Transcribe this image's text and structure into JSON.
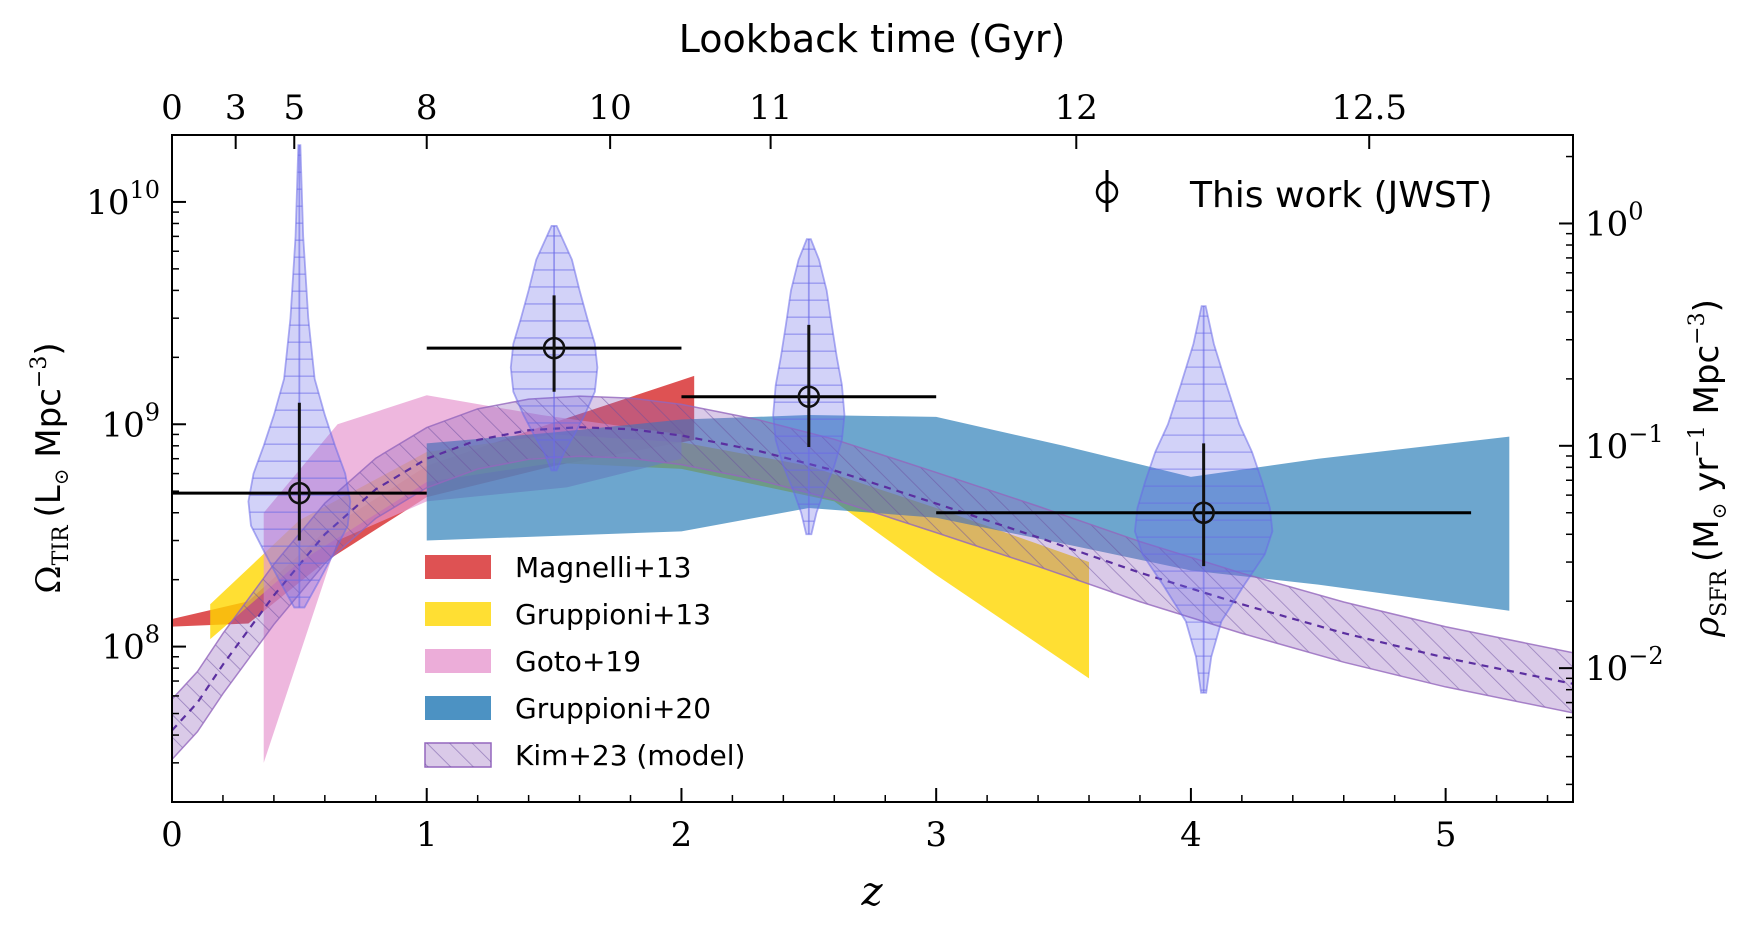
{
  "chart_data": {
    "type": "scatter",
    "xlabel": "z",
    "top_xlabel": "Lookback time (Gyr)",
    "ylabel": {
      "symbol": "Ω",
      "subscript": "TIR",
      "unit_pre": "(L",
      "sun": "⊙",
      "unit_mid": " Mpc",
      "exp": "−3",
      "unit_post": ")"
    },
    "ylabel_right": {
      "symbol": "ρ",
      "subscript": "SFR",
      "unit_pre": "(M",
      "sun": "⊙",
      "unit_mid": " yr",
      "exp1": "−1",
      "unit_mid2": " Mpc",
      "exp2": "−3",
      "unit_post": ")"
    },
    "xlim": [
      0,
      5.5
    ],
    "ylim_log": [
      20000000.0,
      20000000000.0
    ],
    "x_ticks": [
      {
        "value": 0,
        "label": "0"
      },
      {
        "value": 1,
        "label": "1"
      },
      {
        "value": 2,
        "label": "2"
      },
      {
        "value": 3,
        "label": "3"
      },
      {
        "value": 4,
        "label": "4"
      },
      {
        "value": 5,
        "label": "5"
      }
    ],
    "top_ticks": [
      {
        "z": 0,
        "label": "0"
      },
      {
        "z": 0.25,
        "label": "3"
      },
      {
        "z": 0.48,
        "label": "5"
      },
      {
        "z": 1.0,
        "label": "8"
      },
      {
        "z": 1.72,
        "label": "10"
      },
      {
        "z": 2.35,
        "label": "11"
      },
      {
        "z": 3.55,
        "label": "12"
      },
      {
        "z": 4.7,
        "label": "12.5"
      }
    ],
    "left_ticks": [
      {
        "value": 100000000.0,
        "base": "10",
        "exp": "8"
      },
      {
        "value": 1000000000.0,
        "base": "10",
        "exp": "9"
      },
      {
        "value": 10000000000.0,
        "base": "10",
        "exp": "10"
      }
    ],
    "right_ticks": [
      {
        "value": 8000000000.0,
        "base": "10",
        "exp": "0"
      },
      {
        "value": 800000000.0,
        "base": "10",
        "exp": "−1"
      },
      {
        "value": 80000000.0,
        "base": "10",
        "exp": "−2"
      }
    ],
    "legend_top": {
      "label": "This work (JWST)",
      "position": "top-right"
    },
    "legend_entries": [
      {
        "label": "Magnelli+13",
        "color": "#d62728"
      },
      {
        "label": "Gruppioni+13",
        "color": "#ffd700"
      },
      {
        "label": "Goto+19",
        "color": "#e799d0"
      },
      {
        "label": "Gruppioni+20",
        "color": "#1f77b4"
      },
      {
        "label": "Kim+23 (model)",
        "color": "#9467bd"
      }
    ],
    "series": [
      {
        "name": "Magnelli+13",
        "color": "#d62728",
        "opacity": 0.8,
        "upper": [
          [
            0,
            133000000.0
          ],
          [
            0.3,
            160000000.0
          ],
          [
            0.6,
            330000000.0
          ],
          [
            1.0,
            650000000.0
          ],
          [
            1.5,
            1020000000.0
          ],
          [
            2.05,
            1650000000.0
          ]
        ],
        "lower": [
          [
            0,
            123000000.0
          ],
          [
            0.3,
            127000000.0
          ],
          [
            0.6,
            240000000.0
          ],
          [
            1.0,
            470000000.0
          ],
          [
            1.5,
            650000000.0
          ],
          [
            2.05,
            850000000.0
          ]
        ]
      },
      {
        "name": "Gruppioni+13",
        "color": "#ffd700",
        "opacity": 0.8,
        "upper": [
          [
            0.15,
            155000000.0
          ],
          [
            0.5,
            370000000.0
          ],
          [
            1.0,
            750000000.0
          ],
          [
            1.5,
            900000000.0
          ],
          [
            2.0,
            830000000.0
          ],
          [
            2.5,
            650000000.0
          ],
          [
            3.0,
            420000000.0
          ],
          [
            3.6,
            240000000.0
          ]
        ],
        "lower": [
          [
            0.15,
            108000000.0
          ],
          [
            0.5,
            240000000.0
          ],
          [
            1.0,
            550000000.0
          ],
          [
            1.5,
            670000000.0
          ],
          [
            2.0,
            630000000.0
          ],
          [
            2.6,
            450000000.0
          ],
          [
            3.0,
            210000000.0
          ],
          [
            3.6,
            72000000.0
          ]
        ]
      },
      {
        "name": "Goto+19",
        "color": "#e799d0",
        "opacity": 0.7,
        "upper": [
          [
            0.36,
            400000000.0
          ],
          [
            0.65,
            1000000000.0
          ],
          [
            1.0,
            1350000000.0
          ],
          [
            1.45,
            1100000000.0
          ],
          [
            2.0,
            900000000.0
          ]
        ],
        "lower": [
          [
            0.36,
            30000000.0
          ],
          [
            0.65,
            300000000.0
          ],
          [
            1.0,
            450000000.0
          ],
          [
            1.55,
            520000000.0
          ],
          [
            2.0,
            700000000.0
          ]
        ]
      },
      {
        "name": "Gruppioni+20",
        "color": "#1f77b4",
        "opacity": 0.65,
        "upper": [
          [
            1.0,
            820000000.0
          ],
          [
            1.5,
            920000000.0
          ],
          [
            2.0,
            1050000000.0
          ],
          [
            2.5,
            1100000000.0
          ],
          [
            3.0,
            1080000000.0
          ],
          [
            3.5,
            800000000.0
          ],
          [
            4.0,
            580000000.0
          ],
          [
            4.5,
            700000000.0
          ],
          [
            5.25,
            880000000.0
          ]
        ],
        "lower": [
          [
            1.0,
            300000000.0
          ],
          [
            2.0,
            330000000.0
          ],
          [
            2.5,
            420000000.0
          ],
          [
            3.0,
            380000000.0
          ],
          [
            3.5,
            290000000.0
          ],
          [
            4.0,
            220000000.0
          ],
          [
            4.5,
            190000000.0
          ],
          [
            5.25,
            145000000.0
          ]
        ]
      },
      {
        "name": "Kim+23 (model)",
        "color": "#9467bd",
        "opacity": 0.35,
        "hatched": true,
        "center": [
          [
            0,
            42000000.0
          ],
          [
            0.1,
            56000000.0
          ],
          [
            0.2,
            83000000.0
          ],
          [
            0.4,
            170000000.0
          ],
          [
            0.6,
            320000000.0
          ],
          [
            0.8,
            510000000.0
          ],
          [
            1.0,
            700000000.0
          ],
          [
            1.2,
            850000000.0
          ],
          [
            1.4,
            940000000.0
          ],
          [
            1.6,
            970000000.0
          ],
          [
            1.8,
            950000000.0
          ],
          [
            2.0,
            890000000.0
          ],
          [
            2.3,
            760000000.0
          ],
          [
            2.6,
            620000000.0
          ],
          [
            3.0,
            440000000.0
          ],
          [
            3.4,
            310000000.0
          ],
          [
            3.8,
            215000000.0
          ],
          [
            4.2,
            155000000.0
          ],
          [
            4.6,
            115000000.0
          ],
          [
            5.0,
            89000000.0
          ],
          [
            5.5,
            68000000.0
          ]
        ],
        "upper_factor": 1.38,
        "lower_factor": 0.74
      }
    ],
    "points": [
      {
        "z": 0.5,
        "zlo": 0.0,
        "zhi": 1.0,
        "y": 490000000.0,
        "ylo": 300000000.0,
        "yhi": 1250000000.0,
        "violin": {
          "ymin": 150000000.0,
          "ymax": 18000000000.0,
          "profile": [
            [
              150000000.0,
              0.02
            ],
            [
              200000000.0,
              0.08
            ],
            [
              270000000.0,
              0.14
            ],
            [
              350000000.0,
              0.19
            ],
            [
              450000000.0,
              0.2
            ],
            [
              600000000.0,
              0.18
            ],
            [
              800000000.0,
              0.14
            ],
            [
              1100000000.0,
              0.1
            ],
            [
              1600000000.0,
              0.06
            ],
            [
              3000000000.0,
              0.035
            ],
            [
              7000000000.0,
              0.015
            ],
            [
              18000000000.0,
              0.004
            ]
          ]
        }
      },
      {
        "z": 1.5,
        "zlo": 1.0,
        "zhi": 2.0,
        "y": 2200000000.0,
        "ylo": 1400000000.0,
        "yhi": 3800000000.0,
        "violin": {
          "ymin": 620000000.0,
          "ymax": 7800000000.0,
          "profile": [
            [
              620000000.0,
              0.01
            ],
            [
              750000000.0,
              0.04
            ],
            [
              900000000.0,
              0.08
            ],
            [
              1100000000.0,
              0.12
            ],
            [
              1400000000.0,
              0.16
            ],
            [
              1800000000.0,
              0.17
            ],
            [
              2300000000.0,
              0.16
            ],
            [
              3000000000.0,
              0.13
            ],
            [
              4000000000.0,
              0.1
            ],
            [
              5500000000.0,
              0.07
            ],
            [
              7800000000.0,
              0.01
            ]
          ]
        }
      },
      {
        "z": 2.5,
        "zlo": 2.0,
        "zhi": 3.0,
        "y": 1330000000.0,
        "ylo": 790000000.0,
        "yhi": 2800000000.0,
        "violin": {
          "ymin": 320000000.0,
          "ymax": 6800000000.0,
          "profile": [
            [
              320000000.0,
              0.01
            ],
            [
              400000000.0,
              0.03
            ],
            [
              500000000.0,
              0.06
            ],
            [
              650000000.0,
              0.1
            ],
            [
              850000000.0,
              0.13
            ],
            [
              1100000000.0,
              0.14
            ],
            [
              1500000000.0,
              0.13
            ],
            [
              2000000000.0,
              0.11
            ],
            [
              2800000000.0,
              0.09
            ],
            [
              4000000000.0,
              0.07
            ],
            [
              5500000000.0,
              0.04
            ],
            [
              6800000000.0,
              0.008
            ]
          ]
        }
      },
      {
        "z": 4.05,
        "zlo": 3.0,
        "zhi": 5.1,
        "y": 400000000.0,
        "ylo": 230000000.0,
        "yhi": 820000000.0,
        "violin": {
          "ymin": 62000000.0,
          "ymax": 3400000000.0,
          "profile": [
            [
              62000000.0,
              0.01
            ],
            [
              90000000.0,
              0.03
            ],
            [
              130000000.0,
              0.07
            ],
            [
              190000000.0,
              0.16
            ],
            [
              260000000.0,
              0.24
            ],
            [
              330000000.0,
              0.27
            ],
            [
              420000000.0,
              0.26
            ],
            [
              550000000.0,
              0.23
            ],
            [
              750000000.0,
              0.19
            ],
            [
              1000000000.0,
              0.14
            ],
            [
              1500000000.0,
              0.09
            ],
            [
              2300000000.0,
              0.04
            ],
            [
              3400000000.0,
              0.008
            ]
          ]
        }
      }
    ]
  }
}
